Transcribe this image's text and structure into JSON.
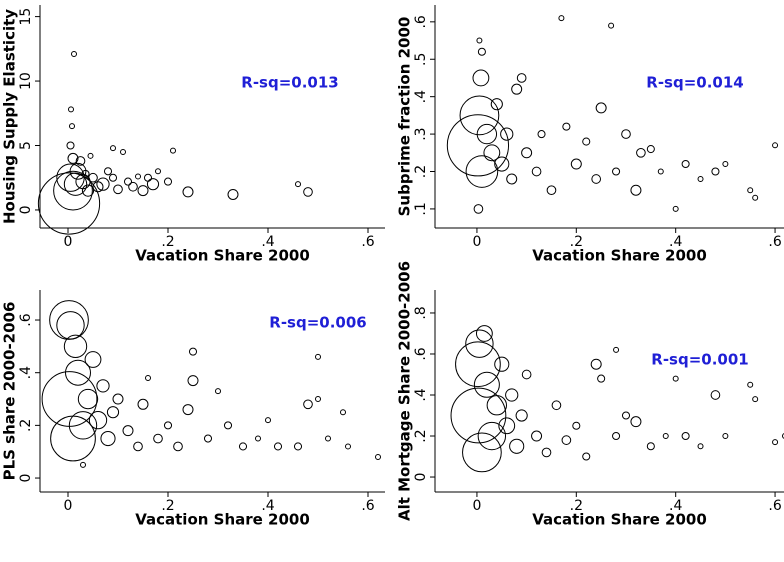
{
  "chart_data": [
    {
      "type": "scatter",
      "xlabel": "Vacation Share 2000",
      "ylabel": "Housing Supply Elasticity",
      "annotation": "R-sq=0.013",
      "xlim": [
        -0.056,
        0.634
      ],
      "ylim": [
        -1.4,
        15.9
      ],
      "xticks": [
        0,
        {
          "value": 0.2,
          "label": ".2"
        },
        {
          "value": 0.4,
          "label": ".4"
        },
        {
          "value": 0.6,
          "label": ".6"
        }
      ],
      "yticks": [
        0,
        5,
        10,
        15
      ],
      "x": [
        0.002,
        0.01,
        0.005,
        0.015,
        0.02,
        0.01,
        0.005,
        0.008,
        0.006,
        0.012,
        0.03,
        0.04,
        0.05,
        0.06,
        0.07,
        0.08,
        0.09,
        0.1,
        0.11,
        0.12,
        0.13,
        0.15,
        0.16,
        0.17,
        0.18,
        0.21,
        0.2,
        0.24,
        0.33,
        0.46,
        0.48,
        0.025,
        0.035,
        0.045,
        0.09,
        0.14
      ],
      "values": [
        0.5,
        1.5,
        2.5,
        2,
        3,
        4,
        5,
        6.5,
        7.8,
        12.1,
        2.2,
        1.5,
        2.5,
        1.8,
        2,
        3,
        2.5,
        1.6,
        4.5,
        2.2,
        1.8,
        1.5,
        2.5,
        2,
        3,
        4.6,
        2.2,
        1.4,
        1.2,
        2,
        1.4,
        3.8,
        2.8,
        4.2,
        4.8,
        2.6
      ],
      "sizes": [
        150,
        60,
        30,
        20,
        10,
        4,
        2,
        1,
        1,
        1,
        8,
        5,
        3,
        4,
        6,
        2,
        2,
        3,
        1,
        2,
        3,
        4,
        2,
        5,
        1,
        1,
        2,
        4,
        4,
        1,
        3,
        3,
        2,
        1,
        1,
        1
      ]
    },
    {
      "type": "scatter",
      "xlabel": "Vacation Share 2000",
      "ylabel": "Subprime fraction 2000",
      "annotation": "R-sq=0.014",
      "xlim": [
        -0.0844,
        0.618
      ],
      "ylim": [
        0.049,
        0.645
      ],
      "xticks": [
        0,
        {
          "value": 0.2,
          "label": ".2"
        },
        {
          "value": 0.4,
          "label": ".4"
        },
        {
          "value": 0.6,
          "label": ".6"
        }
      ],
      "yticks": [
        {
          "value": 0.1,
          "label": ".1"
        },
        {
          "value": 0.2,
          "label": ".2"
        },
        {
          "value": 0.3,
          "label": ".3"
        },
        {
          "value": 0.4,
          "label": ".4"
        },
        {
          "value": 0.5,
          "label": ".5"
        },
        {
          "value": 0.6,
          "label": ".6"
        }
      ],
      "x": [
        0.002,
        0.005,
        0.01,
        0.008,
        0.01,
        0.005,
        0.003,
        0.02,
        0.03,
        0.04,
        0.05,
        0.06,
        0.07,
        0.08,
        0.09,
        0.1,
        0.12,
        0.13,
        0.15,
        0.18,
        0.2,
        0.22,
        0.24,
        0.25,
        0.27,
        0.28,
        0.3,
        0.32,
        0.35,
        0.37,
        0.4,
        0.42,
        0.45,
        0.48,
        0.5,
        0.55,
        0.56,
        0.6,
        0.17,
        0.33
      ],
      "values": [
        0.27,
        0.35,
        0.2,
        0.45,
        0.52,
        0.55,
        0.1,
        0.3,
        0.25,
        0.38,
        0.22,
        0.3,
        0.18,
        0.42,
        0.45,
        0.25,
        0.2,
        0.3,
        0.15,
        0.32,
        0.22,
        0.28,
        0.18,
        0.37,
        0.59,
        0.2,
        0.3,
        0.15,
        0.26,
        0.2,
        0.1,
        0.22,
        0.18,
        0.2,
        0.22,
        0.15,
        0.13,
        0.27,
        0.61,
        0.25
      ],
      "sizes": [
        150,
        60,
        40,
        10,
        2,
        1,
        3,
        15,
        10,
        5,
        8,
        6,
        4,
        4,
        3,
        4,
        3,
        2,
        3,
        2,
        4,
        2,
        3,
        4,
        1,
        2,
        3,
        4,
        2,
        1,
        1,
        2,
        1,
        2,
        1,
        1,
        1,
        1,
        1,
        3
      ]
    },
    {
      "type": "scatter",
      "xlabel": "Vacation Share 2000",
      "ylabel": "PLS share 2000-2006",
      "annotation": "R-sq=0.006",
      "xlim": [
        -0.056,
        0.634
      ],
      "ylim": [
        -0.053,
        0.714
      ],
      "xticks": [
        0,
        {
          "value": 0.2,
          "label": ".2"
        },
        {
          "value": 0.4,
          "label": ".4"
        },
        {
          "value": 0.6,
          "label": ".6"
        }
      ],
      "yticks": [
        0,
        {
          "value": 0.2,
          "label": ".2"
        },
        {
          "value": 0.4,
          "label": ".4"
        },
        {
          "value": 0.6,
          "label": ".6"
        }
      ],
      "x": [
        0.002,
        0.005,
        0.003,
        0.01,
        0.02,
        0.015,
        0.03,
        0.04,
        0.05,
        0.06,
        0.07,
        0.08,
        0.09,
        0.1,
        0.12,
        0.14,
        0.15,
        0.16,
        0.18,
        0.2,
        0.22,
        0.24,
        0.25,
        0.25,
        0.28,
        0.3,
        0.32,
        0.35,
        0.38,
        0.4,
        0.42,
        0.46,
        0.48,
        0.5,
        0.5,
        0.52,
        0.55,
        0.56,
        0.62,
        0.03
      ],
      "values": [
        0.6,
        0.58,
        0.3,
        0.15,
        0.4,
        0.5,
        0.2,
        0.3,
        0.45,
        0.22,
        0.35,
        0.15,
        0.25,
        0.3,
        0.18,
        0.12,
        0.28,
        0.38,
        0.15,
        0.2,
        0.12,
        0.26,
        0.37,
        0.48,
        0.15,
        0.33,
        0.2,
        0.12,
        0.15,
        0.22,
        0.12,
        0.12,
        0.28,
        0.3,
        0.46,
        0.15,
        0.25,
        0.12,
        0.08,
        0.05
      ],
      "sizes": [
        60,
        30,
        120,
        80,
        25,
        20,
        30,
        15,
        10,
        12,
        6,
        8,
        5,
        4,
        4,
        3,
        4,
        1,
        3,
        2,
        3,
        4,
        4,
        2,
        2,
        1,
        2,
        2,
        1,
        1,
        2,
        2,
        3,
        1,
        1,
        1,
        1,
        1,
        1,
        1
      ]
    },
    {
      "type": "scatter",
      "xlabel": "Vacation Share 2000",
      "ylabel": "Alt Mortgage Share 2000-2006",
      "annotation": "R-sq=0.001",
      "xlim": [
        -0.0844,
        0.618
      ],
      "ylim": [
        -0.073,
        0.912
      ],
      "xticks": [
        0,
        {
          "value": 0.2,
          "label": ".2"
        },
        {
          "value": 0.4,
          "label": ".4"
        },
        {
          "value": 0.6,
          "label": ".6"
        }
      ],
      "yticks": [
        0,
        {
          "value": 0.2,
          "label": ".2"
        },
        {
          "value": 0.4,
          "label": ".4"
        },
        {
          "value": 0.6,
          "label": ".6"
        },
        {
          "value": 0.8,
          "label": ".8"
        }
      ],
      "x": [
        0.002,
        0.005,
        0.003,
        0.01,
        0.02,
        0.015,
        0.03,
        0.04,
        0.05,
        0.06,
        0.07,
        0.08,
        0.09,
        0.1,
        0.12,
        0.14,
        0.16,
        0.18,
        0.2,
        0.22,
        0.24,
        0.25,
        0.28,
        0.28,
        0.3,
        0.32,
        0.35,
        0.38,
        0.4,
        0.42,
        0.45,
        0.48,
        0.5,
        0.55,
        0.56,
        0.6,
        0.62
      ],
      "values": [
        0.55,
        0.65,
        0.3,
        0.12,
        0.45,
        0.7,
        0.2,
        0.35,
        0.55,
        0.25,
        0.4,
        0.15,
        0.3,
        0.5,
        0.2,
        0.12,
        0.35,
        0.18,
        0.25,
        0.1,
        0.55,
        0.48,
        0.62,
        0.2,
        0.3,
        0.27,
        0.15,
        0.2,
        0.48,
        0.2,
        0.15,
        0.4,
        0.2,
        0.45,
        0.38,
        0.17,
        0.2
      ],
      "sizes": [
        80,
        30,
        120,
        60,
        25,
        10,
        30,
        15,
        8,
        10,
        6,
        8,
        5,
        3,
        4,
        3,
        3,
        3,
        2,
        2,
        4,
        2,
        1,
        2,
        2,
        4,
        2,
        1,
        1,
        2,
        1,
        3,
        1,
        1,
        1,
        1,
        1
      ]
    }
  ]
}
